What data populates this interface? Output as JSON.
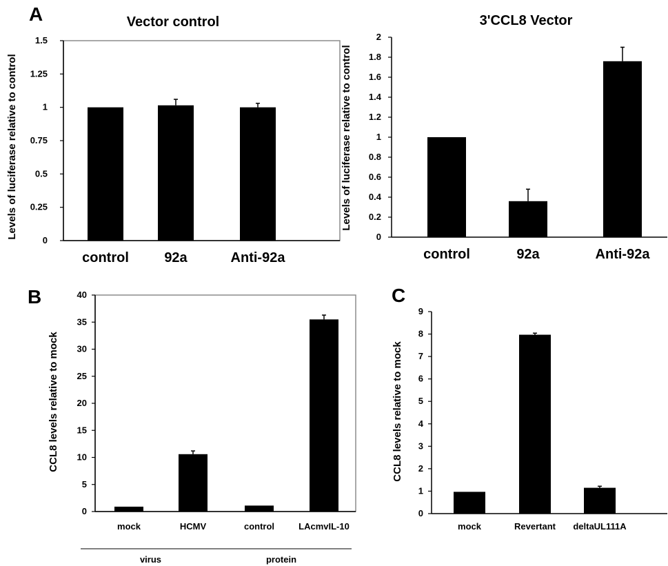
{
  "panel_letters": [
    "A",
    "B",
    "C"
  ],
  "chart_data": [
    {
      "type": "bar",
      "panel": "A",
      "title": "Vector control",
      "ylabel": "Levels of luciferase relative to control",
      "xlabel": "",
      "categories": [
        "control",
        "92a",
        "Anti-92a"
      ],
      "values": [
        1.0,
        1.015,
        1.0
      ],
      "errors": [
        0.0,
        0.045,
        0.03
      ],
      "ylim": [
        0,
        1.5
      ],
      "yticks": [
        0,
        0.25,
        0.5,
        0.75,
        1,
        1.25,
        1.5
      ],
      "ytick_labels": [
        "0",
        "0.25",
        "0.5",
        "0.75",
        "1",
        "1.25",
        "1.5"
      ],
      "bar_color": "#000000",
      "grid": false,
      "legend": "none"
    },
    {
      "type": "bar",
      "panel": "A",
      "title": "3'CCL8 Vector",
      "ylabel": "Levels of luciferase relative to control",
      "xlabel": "",
      "categories": [
        "control",
        "92a",
        "Anti-92a"
      ],
      "values": [
        1.0,
        0.36,
        1.76
      ],
      "errors": [
        0.0,
        0.12,
        0.14
      ],
      "ylim": [
        0,
        2
      ],
      "yticks": [
        0,
        0.2,
        0.4,
        0.6,
        0.8,
        1,
        1.2,
        1.4,
        1.6,
        1.8,
        2
      ],
      "ytick_labels": [
        "0",
        "0.2",
        "0.4",
        "0.6",
        "0.8",
        "1",
        "1.2",
        "1.4",
        "1.6",
        "1.8",
        "2"
      ],
      "bar_color": "#000000",
      "grid": false,
      "legend": "none"
    },
    {
      "type": "bar",
      "panel": "B",
      "title": "",
      "ylabel": "CCL8 levels relative to mock",
      "xlabel": "",
      "categories": [
        "mock",
        "HCMV",
        "control",
        "LAcmvIL-10"
      ],
      "values": [
        0.9,
        10.6,
        1.1,
        35.5
      ],
      "errors": [
        0.0,
        0.6,
        0.0,
        0.8
      ],
      "groups": [
        {
          "label": "virus",
          "from": 0,
          "to": 1
        },
        {
          "label": "protein",
          "from": 2,
          "to": 3
        }
      ],
      "ylim": [
        0,
        40
      ],
      "yticks": [
        0,
        5,
        10,
        15,
        20,
        25,
        30,
        35,
        40
      ],
      "ytick_labels": [
        "0",
        "5",
        "10",
        "15",
        "20",
        "25",
        "30",
        "35",
        "40"
      ],
      "bar_color": "#000000",
      "grid": false,
      "legend": "none"
    },
    {
      "type": "bar",
      "panel": "C",
      "title": "",
      "ylabel": "CCL8 levels relative to mock",
      "xlabel": "",
      "categories": [
        "mock",
        "Revertant",
        "deltaUL111A"
      ],
      "values": [
        0.97,
        7.97,
        1.15
      ],
      "errors": [
        0.0,
        0.07,
        0.07
      ],
      "ylim": [
        0,
        9
      ],
      "yticks": [
        0,
        1,
        2,
        3,
        4,
        5,
        6,
        7,
        8,
        9
      ],
      "ytick_labels": [
        "0",
        "1",
        "2",
        "3",
        "4",
        "5",
        "6",
        "7",
        "8",
        "9"
      ],
      "bar_color": "#000000",
      "grid": false,
      "legend": "none"
    }
  ]
}
